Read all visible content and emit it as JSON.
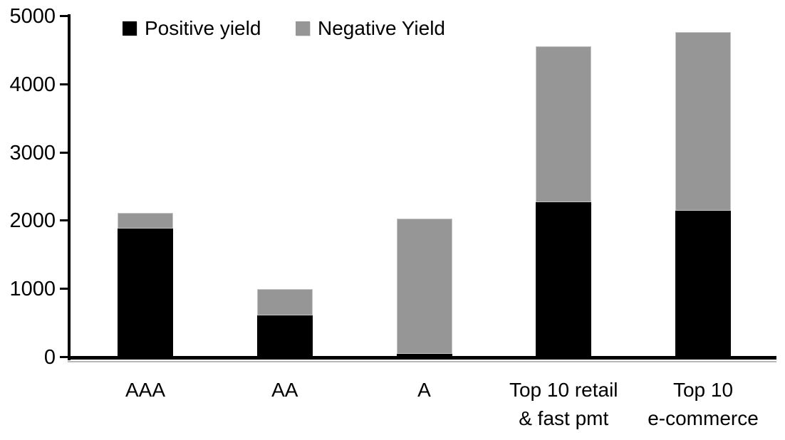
{
  "chart_data": {
    "type": "bar",
    "stacked": true,
    "title": "",
    "xlabel": "",
    "ylabel": "",
    "grid": false,
    "legend_position": "top",
    "background_color": "#ffffff",
    "axis_color": "#000000",
    "categories": [
      "AAA",
      "AA",
      "A",
      "Top 10 retail & fast pmt",
      "Top 10 e-commerce"
    ],
    "category_lines": [
      [
        "AAA"
      ],
      [
        "AA"
      ],
      [
        "A"
      ],
      [
        "Top 10 retail",
        "& fast pmt"
      ],
      [
        "Top 10",
        "e-commerce"
      ]
    ],
    "series": [
      {
        "name": "Positive yield",
        "color": "#000000",
        "values": [
          1890,
          620,
          50,
          2280,
          2150
        ]
      },
      {
        "name": "Negative Yield",
        "color": "#969696",
        "values": [
          230,
          380,
          1985,
          2280,
          2620
        ]
      }
    ],
    "totals": [
      2120,
      1000,
      2035,
      4560,
      4770
    ],
    "ylim": [
      0,
      5000
    ],
    "yticks": [
      0,
      1000,
      2000,
      3000,
      4000,
      5000
    ]
  }
}
